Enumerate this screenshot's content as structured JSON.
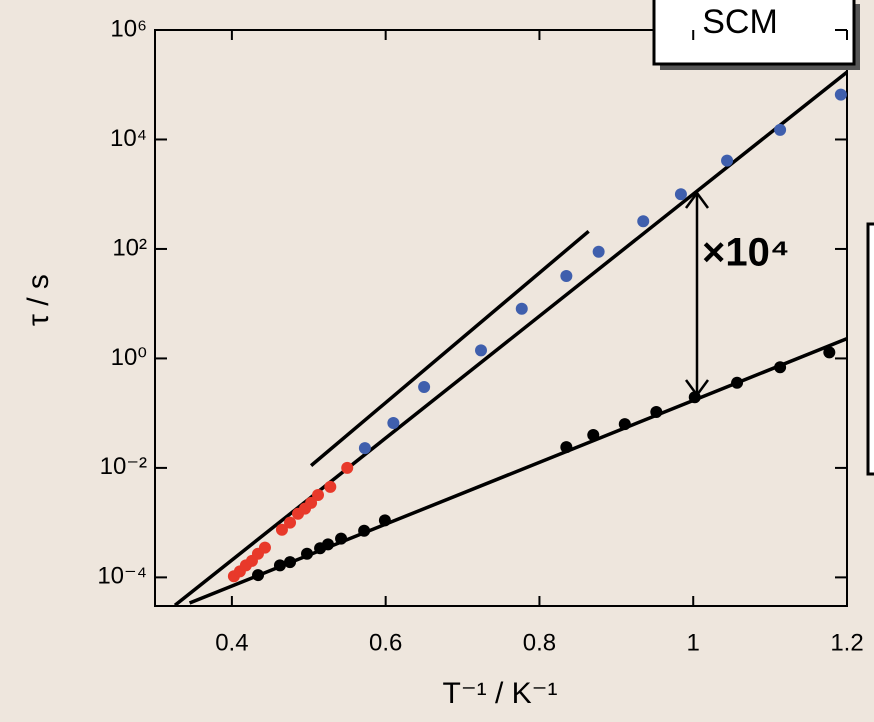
{
  "chart_data": {
    "type": "scatter",
    "log_y": true,
    "xlabel": "T⁻¹ / K⁻¹",
    "ylabel": "τ / s",
    "annotations": [
      "SCM",
      "×10⁴"
    ],
    "xlim": [
      0.3,
      1.2
    ],
    "xticks": [
      0.4,
      0.6,
      0.8,
      1,
      1.2
    ],
    "ylim": [
      3e-05,
      1000000
    ],
    "yticks": [
      {
        "value": 0.0001,
        "label": "10⁻⁴"
      },
      {
        "value": 0.01,
        "label": "10⁻²"
      },
      {
        "value": 1,
        "label": "10⁰"
      },
      {
        "value": 100,
        "label": "10²"
      },
      {
        "value": 10000,
        "label": "10⁴"
      },
      {
        "value": 1000000,
        "label": "10⁶"
      }
    ],
    "series": [
      {
        "style": "line",
        "color": "#000000",
        "x": [
          0.326,
          1.2
        ],
        "values": [
          3.1e-05,
          170000
        ]
      },
      {
        "style": "line",
        "color": "#000000",
        "x": [
          0.503,
          0.864
        ],
        "values": [
          0.011,
          210
        ]
      },
      {
        "style": "line",
        "color": "#000000",
        "x": [
          0.345,
          1.2
        ],
        "values": [
          3.4e-05,
          2.3
        ]
      },
      {
        "style": "markers",
        "color": "#3f5fad",
        "x": [
          0.573,
          0.61,
          0.65,
          0.724,
          0.777,
          0.835,
          0.877,
          0.935,
          0.984,
          1.044,
          1.113,
          1.192
        ],
        "values": [
          0.023,
          0.066,
          0.3,
          1.4,
          8.1,
          32,
          89,
          320,
          1000,
          4100,
          15000,
          66000
        ]
      },
      {
        "style": "markers",
        "color": "#e8392a",
        "x": [
          0.4026,
          0.4104,
          0.4182,
          0.4261,
          0.4339,
          0.443,
          0.4651,
          0.4756,
          0.486,
          0.4951,
          0.503,
          0.512,
          0.528,
          0.55
        ],
        "values": [
          0.000105,
          0.000129,
          0.000166,
          0.0002,
          0.00027,
          0.00035,
          0.00074,
          0.001,
          0.00145,
          0.0018,
          0.0023,
          0.0032,
          0.0045,
          0.01
        ]
      },
      {
        "style": "markers",
        "color": "#000000",
        "x": [
          0.434,
          0.4625,
          0.4756,
          0.4977,
          0.5147,
          0.525,
          0.542,
          0.572,
          0.599,
          0.835,
          0.87,
          0.911,
          0.952,
          1.002,
          1.057,
          1.113,
          1.177
        ],
        "values": [
          0.00011,
          0.000166,
          0.00019,
          0.00027,
          0.00034,
          0.0004,
          0.00051,
          0.00071,
          0.0011,
          0.024,
          0.04,
          0.063,
          0.105,
          0.195,
          0.36,
          0.69,
          1.29
        ]
      }
    ]
  }
}
